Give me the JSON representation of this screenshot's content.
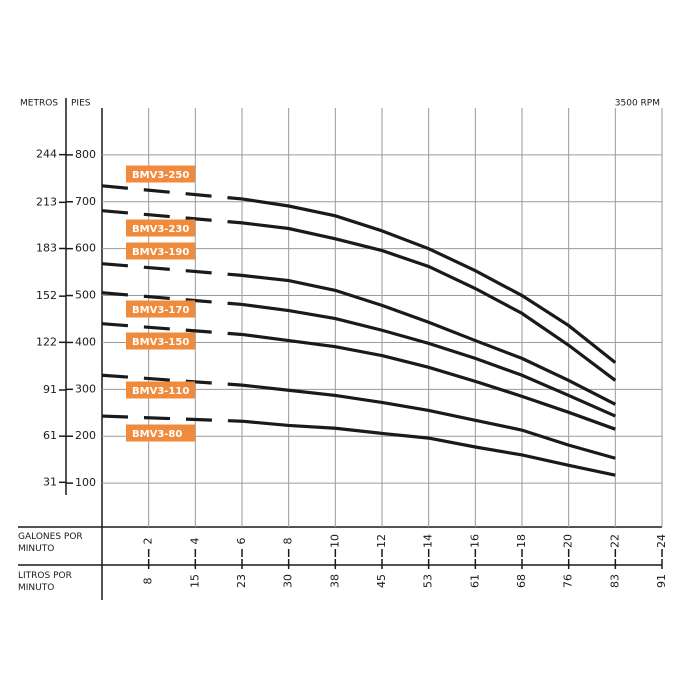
{
  "chart_data": {
    "type": "line",
    "y_label": "PIES",
    "y2_label": "METROS",
    "annotation": "3500 RPM",
    "x_label": "GALONES POR MINUTO",
    "x2_label": "LITROS POR MINUTO",
    "xlim": [
      0,
      24
    ],
    "xticks": [
      2,
      4,
      6,
      8,
      10,
      12,
      14,
      16,
      18,
      20,
      22,
      24
    ],
    "x2lim": [
      0,
      90.85
    ],
    "x2ticks": [
      {
        "value": 7.57,
        "label": "8"
      },
      {
        "value": 15.14,
        "label": "15"
      },
      {
        "value": 22.71,
        "label": "23"
      },
      {
        "value": 30.28,
        "label": "30"
      },
      {
        "value": 37.85,
        "label": "38"
      },
      {
        "value": 45.42,
        "label": "45"
      },
      {
        "value": 52.99,
        "label": "53"
      },
      {
        "value": 60.57,
        "label": "61"
      },
      {
        "value": 68.14,
        "label": "68"
      },
      {
        "value": 75.71,
        "label": "76"
      },
      {
        "value": 83.28,
        "label": "83"
      },
      {
        "value": 90.85,
        "label": "91"
      }
    ],
    "ylim": [
      0,
      900
    ],
    "yticks": [
      100,
      200,
      300,
      400,
      500,
      600,
      700,
      800
    ],
    "y2lim": [
      0,
      274.32
    ],
    "y2ticks": [
      31,
      61,
      91,
      122,
      152,
      183,
      213,
      244
    ],
    "grid": true,
    "label_color": "#f08a3c",
    "x": [
      0,
      6,
      8,
      10,
      12,
      14,
      16,
      18,
      20,
      22
    ],
    "series": [
      {
        "name": "BMV3-250",
        "color": "#1a1a1a",
        "values": [
          734,
          706,
          691,
          670,
          638,
          600,
          553,
          500,
          436,
          357
        ]
      },
      {
        "name": "BMV3-230",
        "color": "#1a1a1a",
        "values": [
          681,
          655,
          643,
          621,
          596,
          562,
          515,
          462,
          394,
          319
        ]
      },
      {
        "name": "BMV3-190",
        "color": "#1a1a1a",
        "values": [
          568,
          543,
          532,
          511,
          479,
          443,
          404,
          366,
          319,
          268
        ]
      },
      {
        "name": "BMV3-170",
        "color": "#1a1a1a",
        "values": [
          506,
          481,
          468,
          451,
          426,
          398,
          366,
          330,
          287,
          243
        ]
      },
      {
        "name": "BMV3-150",
        "color": "#1a1a1a",
        "values": [
          440,
          417,
          404,
          391,
          372,
          347,
          317,
          285,
          251,
          215
        ]
      },
      {
        "name": "BMV3-110",
        "color": "#1a1a1a",
        "values": [
          330,
          309,
          298,
          287,
          272,
          255,
          234,
          213,
          181,
          153
        ]
      },
      {
        "name": "BMV3-80",
        "color": "#1a1a1a",
        "values": [
          243,
          232,
          223,
          217,
          206,
          196,
          177,
          160,
          138,
          117
        ]
      }
    ]
  }
}
